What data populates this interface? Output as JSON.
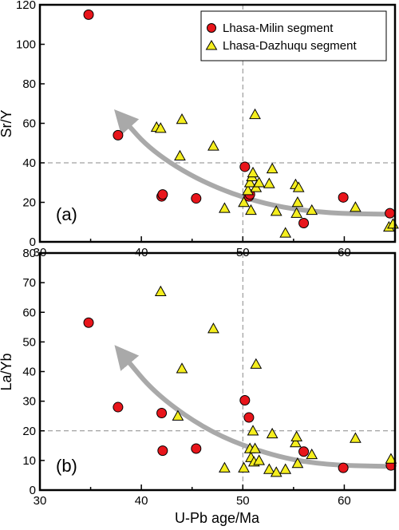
{
  "chart_data": [
    {
      "type": "scatter",
      "panel_label": "(a)",
      "xlabel": "U-Pb age/Ma",
      "ylabel": "Sr/Y",
      "xlim": [
        30,
        65
      ],
      "ylim": [
        0,
        120
      ],
      "xticks": [
        "30",
        "40",
        "50",
        "60"
      ],
      "yticks": [
        "0",
        "20",
        "40",
        "60",
        "80",
        "100",
        "120"
      ],
      "reference_lines": {
        "x": 50,
        "y": 40
      },
      "legend": {
        "placement": "top-right",
        "entries": [
          {
            "name": "Lhasa-Milin segment",
            "marker": "circle",
            "color": "#e8151b"
          },
          {
            "name": "Lhasa-Dazhuqu segment",
            "marker": "triangle",
            "color": "#f5ee1e"
          }
        ]
      },
      "trend_arrow": {
        "color": "#a9a9a9",
        "points": [
          [
            64,
            14
          ],
          [
            58,
            14.5
          ],
          [
            52,
            19
          ],
          [
            46,
            30
          ],
          [
            41,
            46
          ],
          [
            38.2,
            62
          ]
        ]
      },
      "series": [
        {
          "name": "Lhasa-Milin segment",
          "marker": "circle",
          "color": "#e8151b",
          "points": [
            [
              34.8,
              115
            ],
            [
              37.7,
              54
            ],
            [
              42,
              23
            ],
            [
              42.1,
              24
            ],
            [
              45.4,
              22
            ],
            [
              50.2,
              38
            ],
            [
              50.6,
              23
            ],
            [
              50.7,
              24
            ],
            [
              56,
              9.5
            ],
            [
              59.9,
              22.5
            ],
            [
              64.5,
              14.5
            ]
          ]
        },
        {
          "name": "Lhasa-Dazhuqu segment",
          "marker": "triangle",
          "color": "#f5ee1e",
          "points": [
            [
              41.5,
              58
            ],
            [
              41.9,
              57.5
            ],
            [
              43.8,
              43.5
            ],
            [
              44,
              62
            ],
            [
              47.1,
              48.5
            ],
            [
              48.2,
              17
            ],
            [
              50.1,
              20
            ],
            [
              50.5,
              26
            ],
            [
              50.7,
              30
            ],
            [
              50.8,
              16
            ],
            [
              50.9,
              33
            ],
            [
              51,
              35
            ],
            [
              51.2,
              64.5
            ],
            [
              51.3,
              27.5
            ],
            [
              51.6,
              30
            ],
            [
              52.6,
              29.5
            ],
            [
              52.9,
              37
            ],
            [
              53.3,
              15.5
            ],
            [
              54.2,
              4.5
            ],
            [
              55.2,
              29
            ],
            [
              55.3,
              14.5
            ],
            [
              55.4,
              20
            ],
            [
              55.5,
              27.5
            ],
            [
              56.8,
              16
            ],
            [
              61.1,
              17.5
            ],
            [
              64.4,
              7.5
            ],
            [
              64.8,
              9
            ]
          ]
        }
      ]
    },
    {
      "type": "scatter",
      "panel_label": "(b)",
      "xlabel": "U-Pb age/Ma",
      "ylabel": "La/Yb",
      "xlim": [
        30,
        65
      ],
      "ylim": [
        0,
        80
      ],
      "xticks": [
        "30",
        "40",
        "50",
        "60"
      ],
      "yticks": [
        "0",
        "10",
        "20",
        "30",
        "40",
        "50",
        "60",
        "70",
        "80"
      ],
      "reference_lines": {
        "x": 50,
        "y": 20
      },
      "trend_arrow": {
        "color": "#a9a9a9",
        "points": [
          [
            64,
            8
          ],
          [
            58,
            8.5
          ],
          [
            53,
            11.5
          ],
          [
            47,
            19
          ],
          [
            41.5,
            32
          ],
          [
            38.2,
            45.5
          ]
        ]
      },
      "series": [
        {
          "name": "Lhasa-Milin segment",
          "marker": "circle",
          "color": "#e8151b",
          "points": [
            [
              34.8,
              56.5
            ],
            [
              37.7,
              28
            ],
            [
              42,
              26
            ],
            [
              42.1,
              13.3
            ],
            [
              45.4,
              14
            ],
            [
              50.2,
              30.3
            ],
            [
              50.6,
              24.5
            ],
            [
              56,
              13
            ],
            [
              59.9,
              7.5
            ],
            [
              64.6,
              8.3
            ]
          ]
        },
        {
          "name": "Lhasa-Dazhuqu segment",
          "marker": "triangle",
          "color": "#f5ee1e",
          "points": [
            [
              41.9,
              67
            ],
            [
              43.6,
              25
            ],
            [
              44,
              41
            ],
            [
              47.1,
              54.5
            ],
            [
              48.2,
              7.5
            ],
            [
              50.1,
              7.5
            ],
            [
              50.7,
              14
            ],
            [
              50.8,
              11
            ],
            [
              51,
              20
            ],
            [
              51.1,
              9.5
            ],
            [
              51.2,
              14
            ],
            [
              51.3,
              42.5
            ],
            [
              51.6,
              10
            ],
            [
              52.6,
              7
            ],
            [
              52.9,
              19
            ],
            [
              53.3,
              6
            ],
            [
              54.2,
              7
            ],
            [
              55.2,
              16
            ],
            [
              55.3,
              18
            ],
            [
              55.4,
              9
            ],
            [
              56.8,
              12
            ],
            [
              61.1,
              17.5
            ],
            [
              64.6,
              10.5
            ]
          ]
        }
      ]
    }
  ]
}
